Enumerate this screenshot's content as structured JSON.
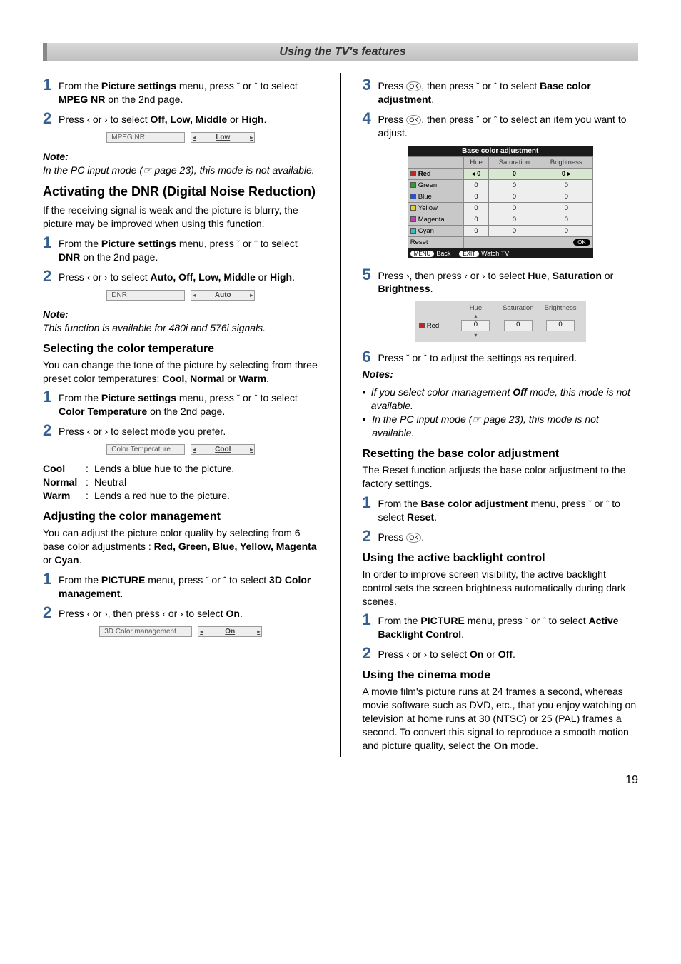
{
  "header": {
    "title": "Using the TV's features"
  },
  "left": {
    "mpeg": {
      "step1": {
        "pre": "From the ",
        "menu": "Picture settings",
        "mid": " menu, press ",
        "postArrows": " or ",
        "tail": " to select ",
        "item": "MPEG NR",
        "end": " on the 2nd page."
      },
      "step2": {
        "pre": "Press ",
        "mid": " or ",
        "post": " to select ",
        "opts": "Off, Low, Middle",
        "or": " or ",
        "last": "High",
        "dot": "."
      },
      "row": {
        "label": "MPEG NR",
        "value": "Low"
      },
      "noteLabel": "Note:",
      "note": "In the PC input mode (☞ page 23), this mode is not available."
    },
    "dnr": {
      "heading": "Activating the DNR (Digital Noise Reduction)",
      "intro": "If the receiving signal is weak and the picture is blurry, the picture may be improved when using this function.",
      "step1": {
        "pre": "From the ",
        "menu": "Picture settings",
        "mid": " menu, press ",
        "postArrows": " or ",
        "tail": " to select ",
        "item": "DNR",
        "end": " on the 2nd page."
      },
      "step2": {
        "pre": "Press ",
        "mid": " or ",
        "post": " to select ",
        "opts": "Auto, Off, Low, Middle",
        "or": " or ",
        "last": "High",
        "dot": "."
      },
      "row": {
        "label": "DNR",
        "value": "Auto"
      },
      "noteLabel": "Note:",
      "note": "This function is available for 480i and 576i signals."
    },
    "ct": {
      "heading": "Selecting the color temperature",
      "intro": {
        "pre": "You can change the tone of the picture by selecting from three preset color temperatures: ",
        "opts": "Cool, Normal",
        "or": " or ",
        "last": "Warm",
        "dot": "."
      },
      "step1": {
        "pre": "From the ",
        "menu": "Picture settings",
        "mid": " menu, press ",
        "postArrows": " or ",
        "tail": " to select ",
        "item": "Color Temperature",
        "end": " on the 2nd page."
      },
      "step2": "Press ‹ or › to select mode you prefer.",
      "row": {
        "label": "Color Temperature",
        "value": "Cool"
      },
      "defs": {
        "cool": {
          "term": "Cool",
          "desc": "Lends a blue hue to the picture."
        },
        "normal": {
          "term": "Normal",
          "desc": "Neutral"
        },
        "warm": {
          "term": "Warm",
          "desc": "Lends a red hue to the picture."
        }
      }
    },
    "cm": {
      "heading": "Adjusting the color management",
      "intro": {
        "pre": "You can adjust the picture color quality by selecting from 6 base color adjustments : ",
        "colors": "Red, Green, Blue, Yellow, Magenta",
        "or": " or ",
        "last": "Cyan",
        "dot": "."
      },
      "step1": {
        "pre": "From the ",
        "menu": "PICTURE",
        "mid": " menu, press ",
        "postArrows": " or ",
        "tail": " to select ",
        "item": "3D Color management",
        "end": "."
      },
      "step2": {
        "pre": "Press ",
        "mid1": " or ",
        "mid2": ", then press ",
        "mid3": " or ",
        "post": " to select ",
        "opt": "On",
        "dot": "."
      },
      "row": {
        "label": "3D Color management",
        "value": "On"
      }
    }
  },
  "right": {
    "bca": {
      "step3": {
        "pre": "Press ",
        "ok": "OK",
        "mid": ", then press ",
        "postArrows": " or ",
        "tail": " to select ",
        "item": "Base color adjustment",
        "dot": "."
      },
      "step4": {
        "pre": "Press ",
        "ok": "OK",
        "mid": ", then press ",
        "postArrows": " or ",
        "tail": " to select an item you want to adjust."
      },
      "table": {
        "title": "Base color adjustment",
        "headers": [
          "",
          "Hue",
          "Saturation",
          "Brightness"
        ],
        "rows": [
          {
            "name": "Red",
            "color": "#cc2222",
            "vals": [
              "0",
              "0",
              "0"
            ],
            "selected": true
          },
          {
            "name": "Green",
            "color": "#2aa02a",
            "vals": [
              "0",
              "0",
              "0"
            ]
          },
          {
            "name": "Blue",
            "color": "#2e4fcf",
            "vals": [
              "0",
              "0",
              "0"
            ]
          },
          {
            "name": "Yellow",
            "color": "#e2d22e",
            "vals": [
              "0",
              "0",
              "0"
            ]
          },
          {
            "name": "Magenta",
            "color": "#c23fb5",
            "vals": [
              "0",
              "0",
              "0"
            ]
          },
          {
            "name": "Cyan",
            "color": "#2ec2c2",
            "vals": [
              "0",
              "0",
              "0"
            ]
          }
        ],
        "reset": "Reset",
        "okPill": "OK",
        "footer": {
          "menu": "MENU",
          "back": "Back",
          "exit": "EXIT",
          "watch": "Watch TV"
        }
      },
      "step5": {
        "pre": "Press ",
        "mid1": ", then press ",
        "mid2": " or ",
        "post": " to select ",
        "a": "Hue",
        "b": "Saturation",
        "or": " or ",
        "c": "Brightness",
        "dot": "."
      },
      "snippet": {
        "name": "Red",
        "color": "#cc2222",
        "headers": [
          "Hue",
          "Saturation",
          "Brightness"
        ],
        "vals": [
          "0",
          "0",
          "0"
        ]
      },
      "step6": {
        "pre": "Press ",
        "mid": " or ",
        "tail": " to adjust the settings as required."
      },
      "notesLabel": "Notes:",
      "note1": {
        "pre": "If you select color management ",
        "off": "Off",
        "post": " mode, this mode is not available."
      },
      "note2": "In the PC input mode (☞ page 23), this mode is not available."
    },
    "reset": {
      "heading": "Resetting the base color adjustment",
      "intro": "The Reset function adjusts the base color adjustment to the factory settings.",
      "step1": {
        "pre": "From the ",
        "menu": "Base color adjustment",
        "mid": " menu, press ",
        "postArrows": " or ",
        "tail": " to select ",
        "item": "Reset",
        "dot": "."
      },
      "step2": {
        "pre": "Press ",
        "ok": "OK",
        "dot": "."
      }
    },
    "abl": {
      "heading": "Using the active backlight control",
      "intro": "In order to improve screen visibility, the active backlight control sets the screen brightness automatically during dark scenes.",
      "step1": {
        "pre": "From the ",
        "menu": "PICTURE",
        "mid": " menu, press ",
        "postArrows": " or ",
        "tail": " to select ",
        "item": "Active Backlight Control",
        "dot": "."
      },
      "step2": {
        "pre": "Press ",
        "mid": " or ",
        "post": " to select ",
        "a": "On",
        "or": " or ",
        "b": "Off",
        "dot": "."
      }
    },
    "cinema": {
      "heading": "Using the cinema mode",
      "para": {
        "pre": "A movie film's picture runs at 24 frames a second, whereas movie software such as DVD, etc., that you enjoy watching on television at home runs at 30 (NTSC) or 25 (PAL) frames a second. To convert this signal to reproduce a smooth motion and picture quality, select the ",
        "on": "On",
        "post": " mode."
      }
    }
  },
  "pageNumber": "19",
  "glyphs": {
    "up": "ˆ",
    "down": "ˇ",
    "left": "‹",
    "right": "›",
    "triL": "◂",
    "triR": "▸",
    "triU": "▴",
    "triD": "▾"
  }
}
